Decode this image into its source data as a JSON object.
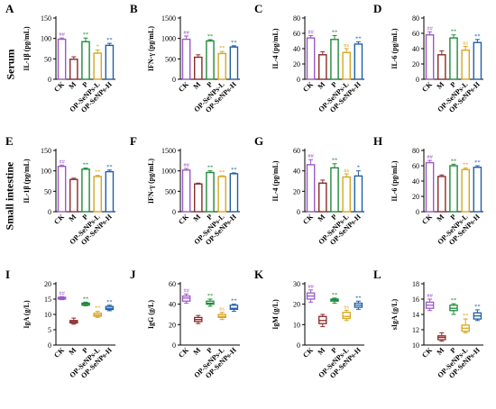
{
  "figure": {
    "row_titles": [
      "Serum",
      "Small intestine"
    ],
    "groups": [
      "CK",
      "M",
      "P",
      "OP-SeNPs-L",
      "OP-SeNPs-H"
    ],
    "colors": [
      "#9b59c6",
      "#8b2a2a",
      "#1f8a3a",
      "#d9a520",
      "#1f5fa8"
    ]
  },
  "chart_data": [
    {
      "panel": "A",
      "type": "bar",
      "categories": [
        "CK",
        "M",
        "P",
        "OP-SeNPs-L",
        "OP-SeNPs-H"
      ],
      "values": [
        98,
        49,
        92,
        64,
        83
      ],
      "errors": [
        3,
        6,
        9,
        8,
        5
      ],
      "ylabel": "IL-1β (pg/mL)",
      "ylim": [
        0,
        150
      ],
      "ticks": [
        0,
        50,
        100,
        150
      ],
      "marks": [
        "##",
        "",
        "**",
        "*",
        "**"
      ],
      "mark_colors": [
        "#9b59c6",
        "",
        "#1f8a3a",
        "#d9a520",
        "#1f5fa8"
      ]
    },
    {
      "panel": "B",
      "type": "bar",
      "categories": [
        "CK",
        "M",
        "P",
        "OP-SeNPs-L",
        "OP-SeNPs-H"
      ],
      "values": [
        980,
        540,
        940,
        630,
        790
      ],
      "errors": [
        80,
        60,
        30,
        50,
        30
      ],
      "ylabel": "IFN-γ (pg/mL)",
      "ylim": [
        0,
        1500
      ],
      "ticks": [
        0,
        500,
        1000,
        1500
      ],
      "marks": [
        "##",
        "",
        "**",
        "**",
        "**"
      ],
      "mark_colors": [
        "#9b59c6",
        "",
        "#1f8a3a",
        "#d9a520",
        "#1f5fa8"
      ]
    },
    {
      "panel": "C",
      "type": "bar",
      "categories": [
        "CK",
        "M",
        "P",
        "OP-SeNPs-L",
        "OP-SeNPs-H"
      ],
      "values": [
        54,
        32,
        52,
        35,
        46
      ],
      "errors": [
        3,
        4,
        5,
        5,
        3
      ],
      "ylabel": "IL-4 (pg/mL)",
      "ylim": [
        0,
        80
      ],
      "ticks": [
        0,
        20,
        40,
        60,
        80
      ],
      "marks": [
        "##",
        "",
        "**",
        "ns",
        "**"
      ],
      "mark_colors": [
        "#9b59c6",
        "",
        "#1f8a3a",
        "#d9a520",
        "#1f5fa8"
      ]
    },
    {
      "panel": "D",
      "type": "bar",
      "categories": [
        "CK",
        "M",
        "P",
        "OP-SeNPs-L",
        "OP-SeNPs-H"
      ],
      "values": [
        58,
        32,
        54,
        38,
        48
      ],
      "errors": [
        4,
        5,
        4,
        5,
        4
      ],
      "ylabel": "IL-6 (pg/mL)",
      "ylim": [
        0,
        80
      ],
      "ticks": [
        0,
        20,
        40,
        60,
        80
      ],
      "marks": [
        "##",
        "",
        "**",
        "ns",
        "**"
      ],
      "mark_colors": [
        "#9b59c6",
        "",
        "#1f8a3a",
        "#d9a520",
        "#1f5fa8"
      ]
    },
    {
      "panel": "E",
      "type": "bar",
      "categories": [
        "CK",
        "M",
        "P",
        "OP-SeNPs-L",
        "OP-SeNPs-H"
      ],
      "values": [
        111,
        79,
        104,
        86,
        98
      ],
      "errors": [
        3,
        3,
        3,
        3,
        4
      ],
      "ylabel": "IL-1β (pg/mL)",
      "ylim": [
        0,
        150
      ],
      "ticks": [
        0,
        50,
        100,
        150
      ],
      "marks": [
        "##",
        "",
        "**",
        "**",
        "**"
      ],
      "mark_colors": [
        "#9b59c6",
        "",
        "#1f8a3a",
        "#d9a520",
        "#1f5fa8"
      ]
    },
    {
      "panel": "F",
      "type": "bar",
      "categories": [
        "CK",
        "M",
        "P",
        "OP-SeNPs-L",
        "OP-SeNPs-H"
      ],
      "values": [
        1020,
        680,
        960,
        860,
        930
      ],
      "errors": [
        40,
        20,
        40,
        20,
        20
      ],
      "ylabel": "IFN-γ (pg/mL)",
      "ylim": [
        0,
        1500
      ],
      "ticks": [
        0,
        500,
        1000,
        1500
      ],
      "marks": [
        "##",
        "",
        "**",
        "**",
        "**"
      ],
      "mark_colors": [
        "#9b59c6",
        "",
        "#1f8a3a",
        "#d9a520",
        "#1f5fa8"
      ]
    },
    {
      "panel": "G",
      "type": "bar",
      "categories": [
        "CK",
        "M",
        "P",
        "OP-SeNPs-L",
        "OP-SeNPs-H"
      ],
      "values": [
        46,
        28,
        43,
        34,
        35
      ],
      "errors": [
        5,
        3,
        4,
        3,
        5
      ],
      "ylabel": "IL-4 (pg/mL)",
      "ylim": [
        0,
        60
      ],
      "ticks": [
        0,
        20,
        40,
        60
      ],
      "marks": [
        "##",
        "",
        "**",
        "ns",
        "*"
      ],
      "mark_colors": [
        "#9b59c6",
        "",
        "#1f8a3a",
        "#d9a520",
        "#1f5fa8"
      ]
    },
    {
      "panel": "H",
      "type": "bar",
      "categories": [
        "CK",
        "M",
        "P",
        "OP-SeNPs-L",
        "OP-SeNPs-H"
      ],
      "values": [
        64,
        46,
        60,
        55,
        58
      ],
      "errors": [
        3,
        2,
        2,
        2,
        2
      ],
      "ylabel": "IL-6 (pg/mL)",
      "ylim": [
        0,
        80
      ],
      "ticks": [
        0,
        20,
        40,
        60,
        80
      ],
      "marks": [
        "##",
        "",
        "**",
        "**",
        "**"
      ],
      "mark_colors": [
        "#9b59c6",
        "",
        "#1f8a3a",
        "#d9a520",
        "#1f5fa8"
      ]
    },
    {
      "panel": "I",
      "type": "box",
      "categories": [
        "CK",
        "M",
        "P",
        "OP-SeNPs-L",
        "OP-SeNPs-H"
      ],
      "boxes": [
        [
          14.8,
          15.0,
          15.3,
          15.6,
          15.8
        ],
        [
          6.8,
          7.2,
          7.6,
          8.0,
          8.8
        ],
        [
          12.8,
          13.0,
          13.4,
          13.7,
          14.0
        ],
        [
          9.0,
          9.4,
          9.8,
          10.4,
          11.0
        ],
        [
          11.2,
          11.6,
          12.0,
          12.6,
          13.0
        ]
      ],
      "ylabel": "IgA (g/L)",
      "ylim": [
        0,
        20
      ],
      "ticks": [
        0,
        5,
        10,
        15,
        20
      ],
      "marks": [
        "##",
        "",
        "**",
        "**",
        "**"
      ],
      "mark_colors": [
        "#9b59c6",
        "",
        "#1f8a3a",
        "#d9a520",
        "#1f5fa8"
      ]
    },
    {
      "panel": "J",
      "type": "box",
      "categories": [
        "CK",
        "M",
        "P",
        "OP-SeNPs-L",
        "OP-SeNPs-H"
      ],
      "boxes": [
        [
          41,
          43,
          46,
          48,
          50
        ],
        [
          21,
          23,
          25,
          27,
          29
        ],
        [
          38,
          40,
          41,
          43,
          45
        ],
        [
          25,
          27,
          28,
          30,
          32
        ],
        [
          33,
          35,
          36,
          39,
          40
        ]
      ],
      "ylabel": "IgG (g/L)",
      "ylim": [
        0,
        60
      ],
      "ticks": [
        0,
        20,
        40,
        60
      ],
      "marks": [
        "##",
        "",
        "**",
        "ns",
        "**"
      ],
      "mark_colors": [
        "#9b59c6",
        "",
        "#1f8a3a",
        "#d9a520",
        "#1f5fa8"
      ]
    },
    {
      "panel": "K",
      "type": "box",
      "categories": [
        "CK",
        "M",
        "P",
        "OP-SeNPs-L",
        "OP-SeNPs-H"
      ],
      "boxes": [
        [
          21,
          22.5,
          24,
          25.5,
          27
        ],
        [
          9,
          10.5,
          12,
          14,
          15
        ],
        [
          20.5,
          21.5,
          22,
          22.5,
          23
        ],
        [
          12,
          13,
          14,
          16,
          17
        ],
        [
          17.5,
          18.5,
          19.5,
          20.5,
          21.5
        ]
      ],
      "ylabel": "IgM (g/L)",
      "ylim": [
        0,
        30
      ],
      "ticks": [
        0,
        10,
        20,
        30
      ],
      "marks": [
        "##",
        "",
        "**",
        "ns",
        "**"
      ],
      "mark_colors": [
        "#9b59c6",
        "",
        "#1f8a3a",
        "#d9a520",
        "#1f5fa8"
      ]
    },
    {
      "panel": "L",
      "type": "box",
      "categories": [
        "CK",
        "M",
        "P",
        "OP-SeNPs-L",
        "OP-SeNPs-H"
      ],
      "boxes": [
        [
          14.5,
          14.8,
          15.2,
          15.6,
          16.0
        ],
        [
          10.5,
          10.7,
          11.0,
          11.2,
          11.6
        ],
        [
          14.0,
          14.5,
          14.8,
          15.2,
          15.4
        ],
        [
          11.6,
          11.8,
          12.2,
          12.6,
          13.4
        ],
        [
          13.2,
          13.4,
          13.8,
          14.2,
          14.6
        ]
      ],
      "ylabel": "sIgA (g/L)",
      "ylim": [
        10,
        18
      ],
      "ticks": [
        10,
        12,
        14,
        16,
        18
      ],
      "marks": [
        "##",
        "",
        "**",
        "**",
        "**"
      ],
      "mark_colors": [
        "#9b59c6",
        "",
        "#1f8a3a",
        "#d9a520",
        "#1f5fa8"
      ]
    }
  ]
}
